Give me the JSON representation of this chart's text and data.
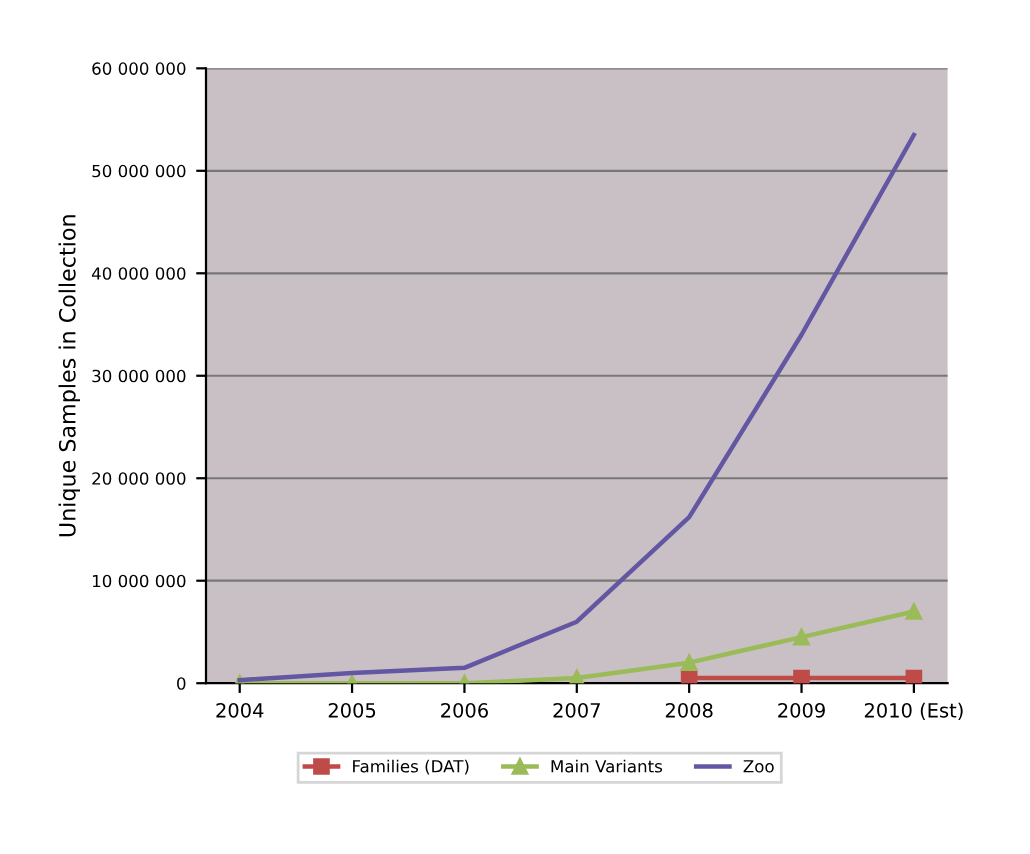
{
  "chart_data": {
    "type": "line",
    "ylabel": "Unique Samples in Collection",
    "categories": [
      "2004",
      "2005",
      "2006",
      "2007",
      "2008",
      "2009",
      "2010 (Est)"
    ],
    "series": [
      {
        "name": "Families (DAT)",
        "color": "#be4b48",
        "marker": "square",
        "values": [
          null,
          null,
          null,
          null,
          500000,
          500000,
          500000
        ]
      },
      {
        "name": "Main Variants",
        "color": "#9bbb59",
        "marker": "triangle",
        "values": [
          0,
          0,
          0,
          500000,
          2000000,
          4500000,
          7000000
        ]
      },
      {
        "name": "Zoo",
        "color": "#6356a3",
        "marker": "none",
        "values": [
          300000,
          1000000,
          1500000,
          6000000,
          16200000,
          34000000,
          53500000
        ]
      }
    ],
    "ylim": [
      0,
      60000000
    ],
    "yticks": [
      {
        "value": 0,
        "label": "0"
      },
      {
        "value": 10000000,
        "label": "10 000 000"
      },
      {
        "value": 20000000,
        "label": "20 000 000"
      },
      {
        "value": 30000000,
        "label": "30 000 000"
      },
      {
        "value": 40000000,
        "label": "40 000 000"
      },
      {
        "value": 50000000,
        "label": "50 000 000"
      },
      {
        "value": 60000000,
        "label": "60 000 000"
      }
    ],
    "grid": "y",
    "legend": "bottom"
  }
}
